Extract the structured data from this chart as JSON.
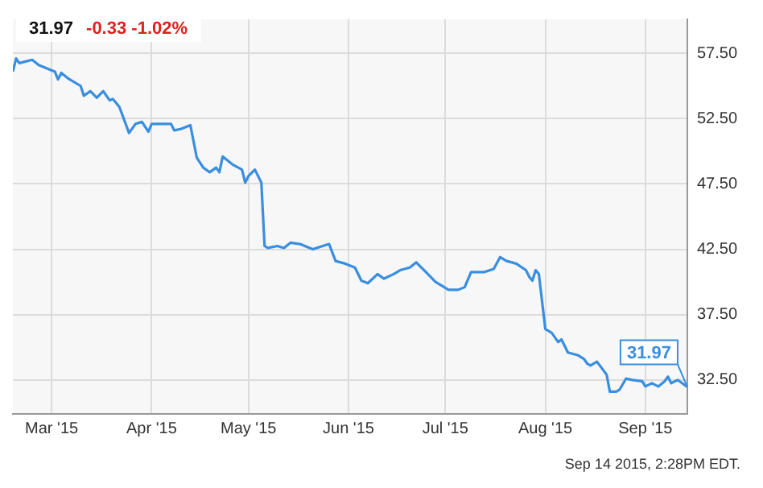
{
  "chart_data": {
    "type": "line",
    "title": "31.97",
    "subtitle": "-0.33  -1.02%",
    "x": [
      "2015-02-17",
      "2015-02-18",
      "2015-02-19",
      "2015-02-23",
      "2015-02-25",
      "2015-03-02",
      "2015-03-03",
      "2015-03-04",
      "2015-03-06",
      "2015-03-10",
      "2015-03-11",
      "2015-03-13",
      "2015-03-15",
      "2015-03-17",
      "2015-03-19",
      "2015-03-20",
      "2015-03-22",
      "2015-03-25",
      "2015-03-27",
      "2015-03-29",
      "2015-03-31",
      "2015-04-01",
      "2015-04-07",
      "2015-04-08",
      "2015-04-10",
      "2015-04-13",
      "2015-04-15",
      "2015-04-17",
      "2015-04-19",
      "2015-04-21",
      "2015-04-22",
      "2015-04-23",
      "2015-04-26",
      "2015-04-29",
      "2015-04-30",
      "2015-05-01",
      "2015-05-03",
      "2015-05-05",
      "2015-05-06",
      "2015-05-07",
      "2015-05-10",
      "2015-05-12",
      "2015-05-14",
      "2015-05-17",
      "2015-05-20",
      "2015-05-21",
      "2015-05-24",
      "2015-05-26",
      "2015-05-28",
      "2015-05-31",
      "2015-06-03",
      "2015-06-05",
      "2015-06-07",
      "2015-06-10",
      "2015-06-12",
      "2015-06-15",
      "2015-06-17",
      "2015-06-20",
      "2015-06-22",
      "2015-06-25",
      "2015-06-28",
      "2015-07-02",
      "2015-07-05",
      "2015-07-07",
      "2015-07-09",
      "2015-07-13",
      "2015-07-16",
      "2015-07-18",
      "2015-07-20",
      "2015-07-23",
      "2015-07-26",
      "2015-07-27",
      "2015-07-28",
      "2015-07-29",
      "2015-07-30",
      "2015-08-01",
      "2015-08-03",
      "2015-08-04",
      "2015-08-05",
      "2015-08-06",
      "2015-08-08",
      "2015-08-11",
      "2015-08-13",
      "2015-08-14",
      "2015-08-15",
      "2015-08-17",
      "2015-08-20",
      "2015-08-21",
      "2015-08-23",
      "2015-08-24",
      "2015-08-26",
      "2015-08-28",
      "2015-08-31",
      "2015-09-01",
      "2015-09-03",
      "2015-09-05",
      "2015-09-07",
      "2015-09-08",
      "2015-09-09",
      "2015-09-11",
      "2015-09-14"
    ],
    "series": [
      {
        "color": "#3a8ee0",
        "values": [
          56.1,
          57.1,
          56.75,
          57.0,
          56.6,
          56.1,
          55.5,
          56.0,
          55.6,
          55.0,
          54.25,
          54.6,
          54.1,
          54.6,
          53.9,
          54.0,
          53.4,
          51.4,
          52.1,
          52.25,
          51.5,
          52.1,
          52.1,
          51.6,
          51.7,
          52.0,
          49.5,
          48.75,
          48.4,
          48.75,
          48.4,
          49.6,
          49.0,
          48.6,
          47.6,
          48.1,
          48.6,
          47.6,
          42.75,
          42.6,
          42.75,
          42.6,
          43.0,
          42.9,
          42.6,
          42.5,
          42.75,
          42.9,
          41.6,
          41.4,
          41.1,
          40.1,
          39.9,
          40.6,
          40.25,
          40.6,
          40.9,
          41.1,
          41.5,
          40.75,
          40.0,
          39.4,
          39.4,
          39.6,
          40.75,
          40.75,
          41.0,
          41.9,
          41.6,
          41.4,
          40.9,
          40.4,
          40.1,
          40.9,
          40.6,
          36.4,
          36.1,
          35.75,
          35.4,
          35.6,
          34.6,
          34.4,
          34.1,
          33.75,
          33.6,
          33.9,
          32.9,
          31.6,
          31.6,
          31.75,
          32.6,
          32.5,
          32.4,
          32.0,
          32.25,
          32.0,
          32.4,
          32.75,
          32.25,
          32.5,
          31.97
        ]
      }
    ],
    "xlim": [
      "2015-02-17",
      "2015-09-14"
    ],
    "xticks": [
      {
        "value": "2015-03-01",
        "label": "Mar '15"
      },
      {
        "value": "2015-04-01",
        "label": "Apr '15"
      },
      {
        "value": "2015-05-01",
        "label": "May '15"
      },
      {
        "value": "2015-06-01",
        "label": "Jun '15"
      },
      {
        "value": "2015-07-01",
        "label": "Jul '15"
      },
      {
        "value": "2015-08-01",
        "label": "Aug '15"
      },
      {
        "value": "2015-09-01",
        "label": "Sep '15"
      }
    ],
    "ylim": [
      29.9,
      60.1
    ],
    "yticks": [
      {
        "value": 32.5,
        "label": "32.50"
      },
      {
        "value": 37.5,
        "label": "37.50"
      },
      {
        "value": 42.5,
        "label": "42.50"
      },
      {
        "value": 47.5,
        "label": "47.50"
      },
      {
        "value": 52.5,
        "label": "52.50"
      },
      {
        "value": 57.5,
        "label": "57.50"
      }
    ],
    "grid": true,
    "legend": false,
    "marker": "none",
    "line_style": "solid",
    "annotations": [
      {
        "text": "31.97",
        "x": "2015-09-14",
        "y": 31.97
      },
      "Sep 14 2015, 2:28PM EDT."
    ]
  }
}
